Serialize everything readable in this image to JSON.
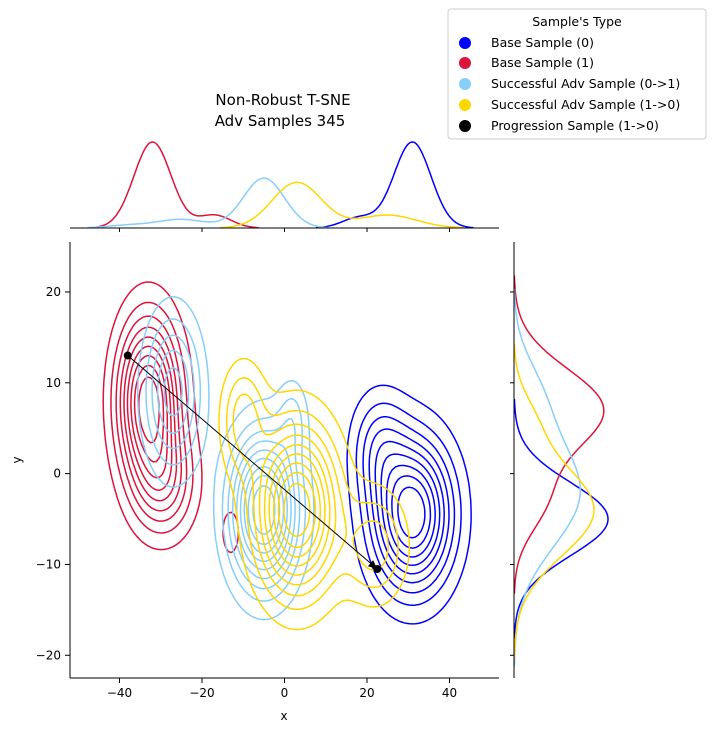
{
  "chart_data": {
    "type": "scatter",
    "title_lines": [
      "Non-Robust T-SNE",
      "Adv Samples 345"
    ],
    "xlabel": "x",
    "ylabel": "y",
    "xlim": [
      -52,
      52
    ],
    "ylim": [
      -22.5,
      25.5
    ],
    "xticks": [
      -40,
      -20,
      0,
      20,
      40
    ],
    "yticks": [
      -20,
      -10,
      0,
      10,
      20
    ],
    "grid": false,
    "legend": {
      "title": "Sample's Type",
      "placement": "top-right",
      "entries": [
        {
          "label": "Base Sample (0)",
          "color": "#0000ff"
        },
        {
          "label": "Base Sample (1)",
          "color": "#dc143c"
        },
        {
          "label": "Successful Adv Sample (0->1)",
          "color": "#87cefa"
        },
        {
          "label": "Successful Adv Sample (1->0)",
          "color": "#ffd700"
        },
        {
          "label": "Progression Sample (1->0)",
          "color": "#000000"
        }
      ]
    },
    "progression": {
      "start": [
        -38,
        13
      ],
      "end": [
        22.5,
        -10.5
      ],
      "color": "#000000"
    },
    "series": [
      {
        "name": "Base Sample (0)",
        "color": "#0000ff",
        "components": [
          {
            "mx": 31,
            "my": -4.5,
            "sx": 6.5,
            "sy": 5.5,
            "w": 1.0
          },
          {
            "mx": 23,
            "my": 3,
            "sx": 4.5,
            "sy": 4,
            "w": 0.3
          }
        ]
      },
      {
        "name": "Base Sample (1)",
        "color": "#dc143c",
        "components": [
          {
            "mx": -33,
            "my": 8,
            "sx": 5,
            "sy": 6,
            "w": 1.0
          },
          {
            "mx": -29,
            "my": -1,
            "sx": 5,
            "sy": 4,
            "w": 0.4
          },
          {
            "mx": -13,
            "my": -6.5,
            "sx": 2.5,
            "sy": 3,
            "w": 0.12
          },
          {
            "mx": 6,
            "my": 7.5,
            "sx": 1.5,
            "sy": 1.5,
            "w": 0.06
          }
        ]
      },
      {
        "name": "Successful Adv Sample (0->1)",
        "color": "#87cefa",
        "components": [
          {
            "mx": -5,
            "my": -4,
            "sx": 5.5,
            "sy": 5.5,
            "w": 1.0
          },
          {
            "mx": -27,
            "my": 9,
            "sx": 4.5,
            "sy": 5.5,
            "w": 0.55
          },
          {
            "mx": 2,
            "my": 6,
            "sx": 2.5,
            "sy": 3,
            "w": 0.2
          }
        ]
      },
      {
        "name": "Successful Adv Sample (1->0)",
        "color": "#ffd700",
        "components": [
          {
            "mx": 3,
            "my": -4,
            "sx": 6.5,
            "sy": 6,
            "w": 1.0
          },
          {
            "mx": -10,
            "my": 6,
            "sx": 3.5,
            "sy": 4,
            "w": 0.35
          },
          {
            "mx": 22,
            "my": -8,
            "sx": 5,
            "sy": 4,
            "w": 0.35
          }
        ]
      }
    ],
    "marginal_x": [
      {
        "name": "Base Sample (0)",
        "color": "#0000ff",
        "components": [
          {
            "mx": 31,
            "s": 4.5,
            "w": 1.0
          },
          {
            "mx": 18,
            "s": 4,
            "w": 0.12
          }
        ]
      },
      {
        "name": "Base Sample (1)",
        "color": "#dc143c",
        "components": [
          {
            "mx": -32,
            "s": 4.5,
            "w": 1.0
          },
          {
            "mx": -17,
            "s": 4,
            "w": 0.15
          }
        ]
      },
      {
        "name": "Successful Adv Sample (0->1)",
        "color": "#87cefa",
        "components": [
          {
            "mx": -5,
            "s": 5,
            "w": 0.58
          },
          {
            "mx": -25,
            "s": 6,
            "w": 0.1
          },
          {
            "mx": -38,
            "s": 5,
            "w": 0.03
          }
        ]
      },
      {
        "name": "Successful Adv Sample (1->0)",
        "color": "#ffd700",
        "components": [
          {
            "mx": 3,
            "s": 6,
            "w": 0.53
          },
          {
            "mx": 25,
            "s": 7,
            "w": 0.15
          }
        ]
      }
    ],
    "marginal_y": [
      {
        "name": "Base Sample (0)",
        "color": "#0000ff",
        "components": [
          {
            "my": -5,
            "s": 4,
            "w": 1.0
          }
        ]
      },
      {
        "name": "Base Sample (1)",
        "color": "#dc143c",
        "components": [
          {
            "my": 7,
            "s": 4.5,
            "w": 0.95
          },
          {
            "my": -3,
            "s": 3.5,
            "w": 0.3
          }
        ]
      },
      {
        "name": "Successful Adv Sample (0->1)",
        "color": "#87cefa",
        "components": [
          {
            "my": -2,
            "s": 6,
            "w": 0.7
          },
          {
            "my": 9,
            "s": 4,
            "w": 0.2
          }
        ]
      },
      {
        "name": "Successful Adv Sample (1->0)",
        "color": "#ffd700",
        "components": [
          {
            "my": -4,
            "s": 5,
            "w": 0.85
          },
          {
            "my": 6,
            "s": 3,
            "w": 0.15
          }
        ]
      }
    ]
  }
}
